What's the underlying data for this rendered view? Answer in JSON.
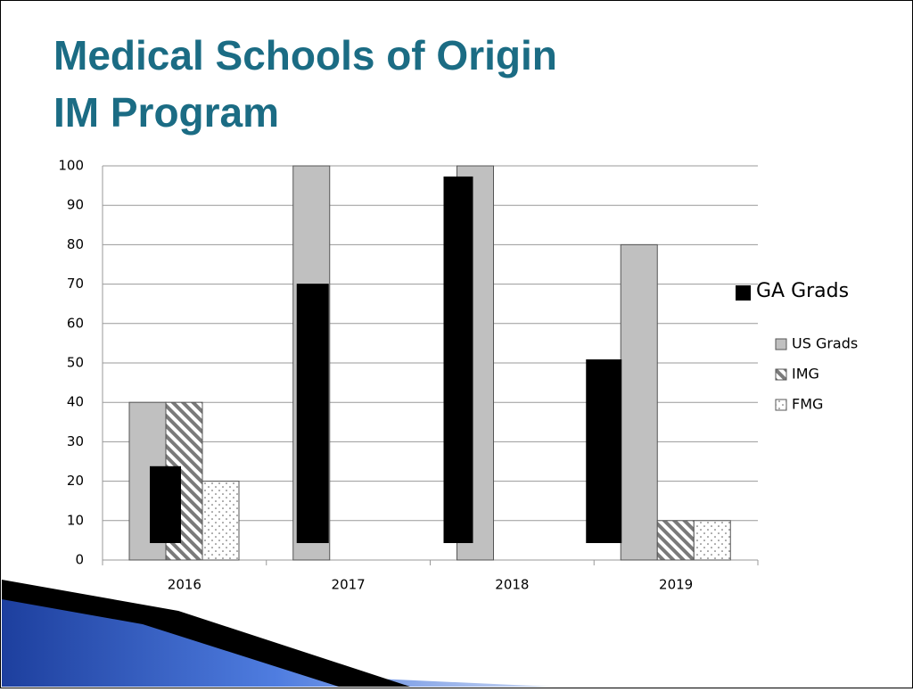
{
  "chart_data": {
    "type": "bar",
    "title": [
      "Medical Schools of Origin",
      "IM Program"
    ],
    "categories": [
      "2016",
      "2017",
      "2018",
      "2019"
    ],
    "series": [
      {
        "name": "US Grads",
        "color": "#c0c0c0",
        "pattern": "solid",
        "values": [
          40,
          100,
          100,
          80
        ]
      },
      {
        "name": "IMG",
        "color": "#808080",
        "pattern": "hatch",
        "values": [
          40,
          0,
          0,
          10
        ]
      },
      {
        "name": "FMG",
        "color": "#808080",
        "pattern": "dots",
        "values": [
          20,
          0,
          0,
          10
        ]
      }
    ],
    "overlay": {
      "name": "GA Grads",
      "color": "#000000",
      "low": [
        4.3,
        4.3,
        4.3,
        4.3
      ],
      "high": [
        23.8,
        70.1,
        97.3,
        50.9
      ]
    },
    "ylim": [
      0,
      100
    ],
    "yticks": [
      0,
      10,
      20,
      30,
      40,
      50,
      60,
      70,
      80,
      90,
      100
    ],
    "grid": true
  }
}
